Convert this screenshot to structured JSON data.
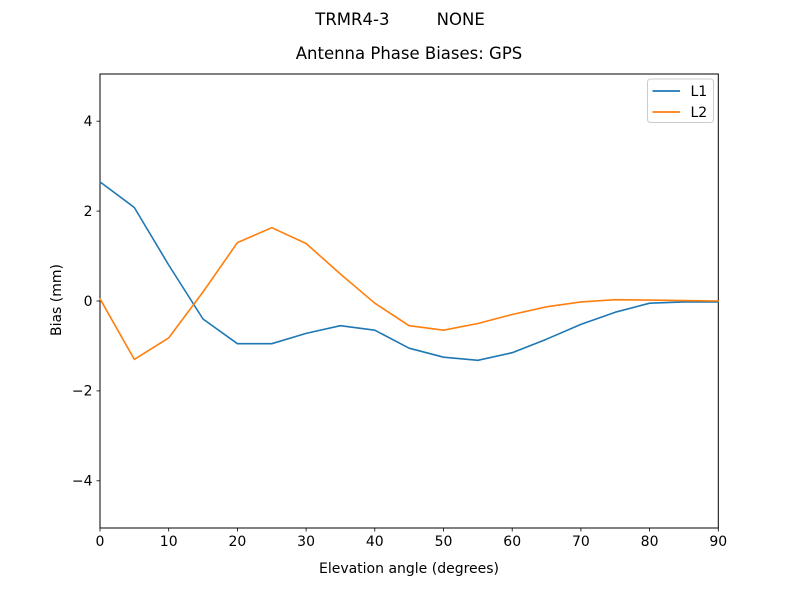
{
  "chart_data": {
    "type": "line",
    "suptitle": "TRMR4-3         NONE",
    "title": "Antenna Phase Biases: GPS",
    "xlabel": "Elevation angle (degrees)",
    "ylabel": "Bias (mm)",
    "xlim": [
      0,
      90
    ],
    "ylim": [
      -5.05,
      5.05
    ],
    "xticks": [
      0,
      10,
      20,
      30,
      40,
      50,
      60,
      70,
      80,
      90
    ],
    "yticks": [
      -4,
      -2,
      0,
      2,
      4
    ],
    "grid": false,
    "legend_position": "upper right",
    "background": "#ffffff",
    "axes_color": "#000000",
    "x": [
      0,
      5,
      10,
      15,
      20,
      25,
      30,
      35,
      40,
      45,
      50,
      55,
      60,
      65,
      70,
      75,
      80,
      85,
      90
    ],
    "series": [
      {
        "name": "L1",
        "color": "#1f77b4",
        "values": [
          2.65,
          2.08,
          0.8,
          -0.4,
          -0.95,
          -0.95,
          -0.72,
          -0.55,
          -0.65,
          -1.05,
          -1.25,
          -1.32,
          -1.15,
          -0.85,
          -0.52,
          -0.25,
          -0.05,
          -0.02,
          -0.02
        ]
      },
      {
        "name": "L2",
        "color": "#ff7f0e",
        "values": [
          0.05,
          -1.3,
          -0.82,
          0.2,
          1.3,
          1.63,
          1.28,
          0.6,
          -0.05,
          -0.55,
          -0.65,
          -0.5,
          -0.3,
          -0.13,
          -0.02,
          0.03,
          0.02,
          0.01,
          0.0
        ]
      }
    ]
  }
}
